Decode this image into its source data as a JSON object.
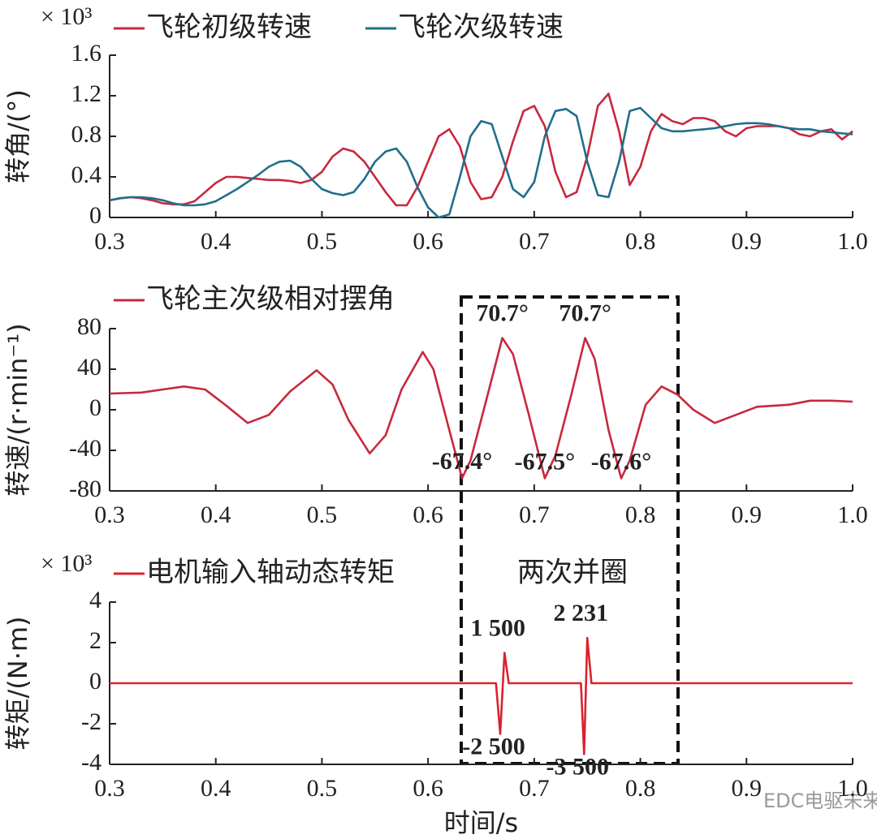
{
  "chart_data": [
    {
      "type": "line",
      "yunit_label": "× 10³",
      "ylabel": "转角/(°)",
      "xlim": [
        0.3,
        1.0
      ],
      "xticks": [
        0.3,
        0.4,
        0.5,
        0.6,
        0.7,
        0.8,
        0.9,
        {
          "value": 1,
          "label": "1.0"
        }
      ],
      "ylim": [
        0,
        1.6
      ],
      "yticks": [
        0,
        0.4,
        0.8,
        1.2,
        1.6
      ],
      "x": [
        0.3,
        0.31,
        0.32,
        0.33,
        0.34,
        0.35,
        0.36,
        0.37,
        0.38,
        0.39,
        0.4,
        0.41,
        0.42,
        0.43,
        0.44,
        0.45,
        0.46,
        0.47,
        0.48,
        0.49,
        0.5,
        0.51,
        0.52,
        0.53,
        0.54,
        0.55,
        0.56,
        0.57,
        0.58,
        0.59,
        0.6,
        0.61,
        0.62,
        0.63,
        0.64,
        0.65,
        0.66,
        0.67,
        0.68,
        0.69,
        0.7,
        0.71,
        0.72,
        0.73,
        0.74,
        0.75,
        0.76,
        0.77,
        0.78,
        0.79,
        0.8,
        0.81,
        0.82,
        0.83,
        0.84,
        0.85,
        0.86,
        0.87,
        0.88,
        0.89,
        0.9,
        0.91,
        0.92,
        0.93,
        0.94,
        0.95,
        0.96,
        0.97,
        0.98,
        0.99,
        1.0
      ],
      "series": [
        {
          "name": "飞轮初级转速",
          "color": "#c8283c",
          "values": [
            0.17,
            0.19,
            0.2,
            0.19,
            0.17,
            0.14,
            0.13,
            0.13,
            0.16,
            0.25,
            0.34,
            0.4,
            0.4,
            0.39,
            0.38,
            0.37,
            0.37,
            0.36,
            0.34,
            0.37,
            0.45,
            0.6,
            0.68,
            0.65,
            0.55,
            0.4,
            0.25,
            0.12,
            0.12,
            0.3,
            0.55,
            0.8,
            0.87,
            0.7,
            0.35,
            0.18,
            0.2,
            0.4,
            0.75,
            1.05,
            1.1,
            0.9,
            0.45,
            0.2,
            0.25,
            0.6,
            1.1,
            1.22,
            0.85,
            0.32,
            0.5,
            0.85,
            1.02,
            0.95,
            0.92,
            0.98,
            0.98,
            0.95,
            0.85,
            0.8,
            0.88,
            0.9,
            0.9,
            0.9,
            0.88,
            0.82,
            0.8,
            0.85,
            0.87,
            0.77,
            0.85
          ]
        },
        {
          "name": "飞轮次级转速",
          "color": "#1f6f8b",
          "values": [
            0.17,
            0.19,
            0.2,
            0.2,
            0.19,
            0.17,
            0.14,
            0.12,
            0.12,
            0.13,
            0.16,
            0.22,
            0.28,
            0.35,
            0.42,
            0.5,
            0.55,
            0.56,
            0.5,
            0.38,
            0.28,
            0.24,
            0.22,
            0.25,
            0.38,
            0.55,
            0.65,
            0.68,
            0.55,
            0.3,
            0.1,
            0,
            0.03,
            0.4,
            0.8,
            0.95,
            0.92,
            0.6,
            0.28,
            0.2,
            0.35,
            0.8,
            1.05,
            1.07,
            1.0,
            0.55,
            0.22,
            0.2,
            0.55,
            1.05,
            1.08,
            0.98,
            0.88,
            0.85,
            0.85,
            0.86,
            0.87,
            0.88,
            0.9,
            0.92,
            0.93,
            0.93,
            0.92,
            0.9,
            0.88,
            0.87,
            0.87,
            0.85,
            0.84,
            0.83,
            0.82
          ]
        }
      ]
    },
    {
      "type": "line",
      "ylabel": "转速/(r·min⁻¹)",
      "xlim": [
        0.3,
        1.0
      ],
      "xticks": [
        0.3,
        0.4,
        0.5,
        0.6,
        0.7,
        0.8,
        0.9,
        {
          "value": 1,
          "label": "1.0"
        }
      ],
      "ylim": [
        -80,
        80
      ],
      "yticks": [
        -80,
        -40,
        0,
        40,
        80
      ],
      "x": [
        0.3,
        0.33,
        0.35,
        0.37,
        0.39,
        0.41,
        0.43,
        0.45,
        0.47,
        0.495,
        0.51,
        0.525,
        0.545,
        0.56,
        0.575,
        0.595,
        0.605,
        0.62,
        0.632,
        0.64,
        0.655,
        0.67,
        0.68,
        0.695,
        0.71,
        0.72,
        0.735,
        0.748,
        0.757,
        0.77,
        0.782,
        0.79,
        0.805,
        0.82,
        0.835,
        0.85,
        0.87,
        0.89,
        0.91,
        0.94,
        0.96,
        0.98,
        1.0
      ],
      "series": [
        {
          "name": "飞轮主次级相对摆角",
          "color": "#c8283c",
          "values": [
            16,
            17,
            20,
            23,
            20,
            4,
            -13,
            -5,
            18,
            39,
            25,
            -10,
            -43,
            -25,
            20,
            57,
            40,
            -20,
            -67.4,
            -50,
            10,
            70.7,
            55,
            -5,
            -67.5,
            -45,
            15,
            70.7,
            50,
            -20,
            -67.6,
            -50,
            5,
            23,
            15,
            0,
            -13,
            -5,
            3,
            5,
            9,
            9,
            8
          ],
          "value_labels": [
            null,
            null,
            null,
            null,
            null,
            null,
            null,
            null,
            null,
            null,
            null,
            null,
            null,
            null,
            null,
            null,
            null,
            null,
            "-67.4°",
            null,
            null,
            "70.7°",
            null,
            null,
            "-67.5°",
            null,
            null,
            "70.7°",
            null,
            null,
            "-67.6°",
            null,
            null,
            null,
            null,
            null,
            null,
            null,
            null,
            null,
            null,
            null,
            null
          ]
        }
      ]
    },
    {
      "type": "line",
      "yunit_label": "× 10³",
      "ylabel": "转矩/(N·m)",
      "xlabel": "时间/s",
      "annotation": "两次并圈",
      "xlim": [
        0.3,
        1.0
      ],
      "xticks": [
        0.3,
        0.4,
        0.5,
        0.6,
        0.7,
        0.8,
        0.9,
        {
          "value": 1,
          "label": "1.0"
        }
      ],
      "ylim": [
        -4,
        4
      ],
      "yticks": [
        -4,
        -2,
        0,
        2,
        4
      ],
      "x": [
        0.3,
        0.664,
        0.668,
        0.672,
        0.676,
        0.744,
        0.747,
        0.75,
        0.754,
        1.0
      ],
      "series": [
        {
          "name": "电机输入轴动态转矩",
          "color": "#d9232e",
          "values": [
            0,
            0,
            -2.5,
            1.5,
            0,
            0,
            -3.5,
            2.231,
            0,
            0
          ],
          "value_labels": [
            null,
            null,
            "-2 500",
            "1 500",
            null,
            null,
            "-3 500",
            "2 231",
            null,
            null
          ]
        }
      ]
    }
  ],
  "watermark": "EDC电驱未来"
}
